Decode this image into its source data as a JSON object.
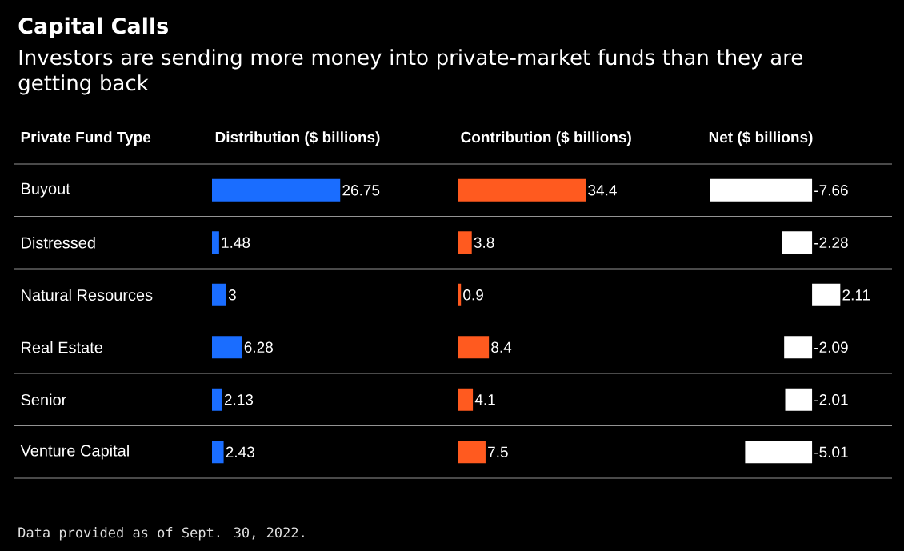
{
  "chart_data": [
    {
      "type": "bar",
      "orientation": "horizontal",
      "title": "Capital Calls",
      "subtitle": "Investors are sending more money into private-market funds than they are getting back",
      "ylabel": "Private Fund Type",
      "xlabel": "Distribution ($ billions)",
      "categories": [
        "Buyout",
        "Distressed",
        "Natural Resources",
        "Real Estate",
        "Senior",
        "Venture Capital"
      ],
      "values": [
        26.75,
        1.48,
        3,
        6.28,
        2.13,
        2.43
      ],
      "color": "#1a6dff",
      "data_labels": true,
      "tick_labels": "y",
      "annotations": [
        "Data provided as of Sept. 30, 2022."
      ]
    },
    {
      "type": "bar",
      "orientation": "horizontal",
      "xlabel": "Contribution ($ billions)",
      "categories": [
        null,
        null,
        null,
        null,
        null,
        null
      ],
      "values": [
        34.4,
        3.8,
        0.9,
        8.4,
        4.1,
        7.5
      ],
      "color": "#ff5a1f",
      "data_labels": true,
      "tick_labels": false
    },
    {
      "type": "bar",
      "orientation": "horizontal",
      "xlabel": "Net ($ billions)",
      "categories": [
        null,
        null,
        null,
        null,
        null,
        null
      ],
      "values": [
        -7.66,
        -2.28,
        2.11,
        -2.09,
        -2.01,
        -5.01
      ],
      "color": "#ffffff",
      "data_labels": true,
      "tick_labels": false
    }
  ]
}
